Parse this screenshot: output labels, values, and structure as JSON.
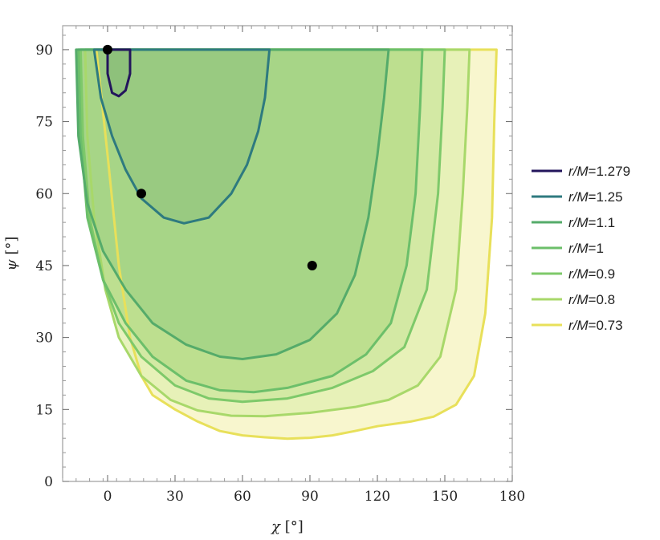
{
  "chart_data": {
    "type": "area",
    "title": "",
    "xlabel": {
      "symbol": "χ",
      "unit": " [°]"
    },
    "ylabel": {
      "symbol": "ψ",
      "unit": " [°]"
    },
    "xlim": [
      -20,
      180
    ],
    "ylim": [
      0,
      95
    ],
    "xticks": [
      0,
      30,
      60,
      90,
      120,
      150,
      180
    ],
    "yticks": [
      0,
      15,
      30,
      45,
      60,
      75,
      90
    ],
    "grid": false,
    "legend_position": "right",
    "series": [
      {
        "name": "r/M=0.73",
        "var": "r/M",
        "eq": "=",
        "value": "0.73",
        "line_color": "#e8e05a",
        "fill_color": "#f7f4c6",
        "boundary": [
          [
            -5,
            90
          ],
          [
            0,
            68
          ],
          [
            5,
            45
          ],
          [
            10,
            30
          ],
          [
            15,
            22
          ],
          [
            20,
            18
          ],
          [
            30,
            15
          ],
          [
            40,
            12.5
          ],
          [
            50,
            10.5
          ],
          [
            60,
            9.6
          ],
          [
            70,
            9.2
          ],
          [
            80,
            8.9
          ],
          [
            90,
            9.1
          ],
          [
            100,
            9.6
          ],
          [
            110,
            10.5
          ],
          [
            120,
            11.5
          ],
          [
            135,
            12.5
          ],
          [
            145,
            13.5
          ],
          [
            155,
            16
          ],
          [
            163,
            22
          ],
          [
            168,
            35
          ],
          [
            171,
            55
          ],
          [
            172,
            75
          ],
          [
            173,
            90
          ]
        ]
      },
      {
        "name": "r/M=0.8",
        "var": "r/M",
        "eq": "=",
        "value": "0.8",
        "line_color": "#a8d86a",
        "fill_color": "#e4f0b4",
        "boundary": [
          [
            -10,
            90
          ],
          [
            -9,
            72
          ],
          [
            -6,
            55
          ],
          [
            -1,
            40
          ],
          [
            5,
            30
          ],
          [
            15,
            22
          ],
          [
            28,
            17
          ],
          [
            40,
            14.8
          ],
          [
            55,
            13.7
          ],
          [
            70,
            13.6
          ],
          [
            90,
            14.3
          ],
          [
            110,
            15.5
          ],
          [
            125,
            17
          ],
          [
            138,
            20
          ],
          [
            148,
            26
          ],
          [
            155,
            40
          ],
          [
            158,
            60
          ],
          [
            160,
            78
          ],
          [
            161,
            90
          ]
        ]
      },
      {
        "name": "r/M=0.9",
        "var": "r/M",
        "eq": "=",
        "value": "0.9",
        "line_color": "#7ec96a",
        "fill_color": "#cfe7a0",
        "boundary": [
          [
            -12,
            90
          ],
          [
            -11,
            72
          ],
          [
            -8,
            55
          ],
          [
            -2,
            42
          ],
          [
            5,
            33
          ],
          [
            15,
            26
          ],
          [
            30,
            20
          ],
          [
            45,
            17.3
          ],
          [
            60,
            16.6
          ],
          [
            80,
            17.3
          ],
          [
            100,
            19.5
          ],
          [
            118,
            23
          ],
          [
            132,
            28
          ],
          [
            142,
            40
          ],
          [
            147,
            60
          ],
          [
            149,
            78
          ],
          [
            150,
            90
          ]
        ]
      },
      {
        "name": "r/M=1",
        "var": "r/M",
        "eq": "=",
        "value": "1",
        "line_color": "#6cbf6a",
        "fill_color": "#b8dd8c",
        "boundary": [
          [
            -13,
            90
          ],
          [
            -12,
            72
          ],
          [
            -9,
            55
          ],
          [
            -2,
            42
          ],
          [
            8,
            33
          ],
          [
            20,
            26
          ],
          [
            35,
            21
          ],
          [
            50,
            19
          ],
          [
            65,
            18.6
          ],
          [
            80,
            19.5
          ],
          [
            100,
            22
          ],
          [
            115,
            26.5
          ],
          [
            126,
            33
          ],
          [
            133,
            45
          ],
          [
            137,
            60
          ],
          [
            139,
            78
          ],
          [
            140,
            90
          ]
        ]
      },
      {
        "name": "r/M=1.1",
        "var": "r/M",
        "eq": "=",
        "value": "1.1",
        "line_color": "#55ab6a",
        "fill_color": "#a3d386",
        "boundary": [
          [
            -14,
            90
          ],
          [
            -13,
            72
          ],
          [
            -9,
            58
          ],
          [
            -2,
            48
          ],
          [
            8,
            40
          ],
          [
            20,
            33
          ],
          [
            35,
            28.5
          ],
          [
            50,
            26
          ],
          [
            60,
            25.5
          ],
          [
            75,
            26.5
          ],
          [
            90,
            29.5
          ],
          [
            102,
            35
          ],
          [
            110,
            43
          ],
          [
            116,
            55
          ],
          [
            120,
            68
          ],
          [
            123,
            80
          ],
          [
            125,
            90
          ]
        ]
      },
      {
        "name": "r/M=1.25",
        "var": "r/M",
        "eq": "=",
        "value": "1.25",
        "line_color": "#2e7a7f",
        "fill_color": "#96c880",
        "boundary": [
          [
            -6,
            90
          ],
          [
            -3,
            80
          ],
          [
            2,
            72
          ],
          [
            8,
            65
          ],
          [
            15,
            59
          ],
          [
            25,
            55
          ],
          [
            34,
            53.8
          ],
          [
            45,
            55
          ],
          [
            55,
            60
          ],
          [
            62,
            66
          ],
          [
            67,
            73
          ],
          [
            70,
            80
          ],
          [
            72,
            90
          ]
        ]
      },
      {
        "name": "r/M=1.279",
        "var": "r/M",
        "eq": "=",
        "value": "1.279",
        "line_color": "#23155c",
        "fill_color": "#8cc07a",
        "boundary": [
          [
            0,
            90
          ],
          [
            0,
            85
          ],
          [
            2,
            81
          ],
          [
            5,
            80.3
          ],
          [
            8,
            81.5
          ],
          [
            10,
            85
          ],
          [
            10,
            90
          ]
        ]
      }
    ],
    "points": [
      {
        "x": 0,
        "y": 90
      },
      {
        "x": 15,
        "y": 60
      },
      {
        "x": 91,
        "y": 45
      }
    ]
  }
}
